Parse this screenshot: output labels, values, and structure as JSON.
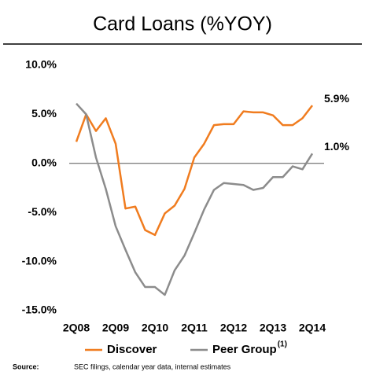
{
  "chart_data": {
    "type": "line",
    "title": "Card Loans (%YOY)",
    "categories": [
      "2Q08",
      null,
      null,
      null,
      "2Q09",
      null,
      null,
      null,
      "2Q10",
      null,
      null,
      null,
      "2Q11",
      null,
      null,
      null,
      "2Q12",
      null,
      null,
      null,
      "2Q13",
      null,
      null,
      null,
      "2Q14"
    ],
    "series": [
      {
        "name": "Discover",
        "color": "#f07c1f",
        "values": [
          2.2,
          5.0,
          3.3,
          4.6,
          2.0,
          -4.6,
          -4.4,
          -6.8,
          -7.3,
          -5.1,
          -4.3,
          -2.6,
          0.6,
          2.0,
          3.9,
          4.0,
          4.0,
          5.3,
          5.2,
          5.2,
          4.9,
          3.9,
          3.9,
          4.6,
          5.9
        ],
        "value_labels": [
          null,
          null,
          null,
          null,
          null,
          null,
          null,
          null,
          null,
          null,
          null,
          null,
          null,
          null,
          null,
          null,
          null,
          null,
          null,
          null,
          null,
          null,
          null,
          null,
          "5.9%"
        ]
      },
      {
        "name": "Peer Group",
        "color": "#8c8c8c",
        "values": [
          6.1,
          5.0,
          0.6,
          -2.6,
          -6.4,
          -8.8,
          -11.1,
          -12.6,
          -12.6,
          -13.4,
          -10.9,
          -9.4,
          -7.1,
          -4.7,
          -2.7,
          -2.0,
          -2.1,
          -2.2,
          -2.7,
          -2.5,
          -1.4,
          -1.4,
          -0.3,
          -0.6,
          1.0
        ],
        "value_labels": [
          null,
          null,
          null,
          null,
          null,
          null,
          null,
          null,
          null,
          null,
          null,
          null,
          null,
          null,
          null,
          null,
          null,
          null,
          null,
          null,
          null,
          null,
          null,
          null,
          "1.0%"
        ]
      }
    ],
    "legend_superscript": "(1)",
    "ylim": [
      -15,
      10
    ],
    "yticks": [
      {
        "value": 10,
        "label": "10.0%"
      },
      {
        "value": 5,
        "label": "5.0%"
      },
      {
        "value": 0,
        "label": "0.0%"
      },
      {
        "value": -5,
        "label": "-5.0%"
      },
      {
        "value": -10,
        "label": "-10.0%"
      },
      {
        "value": -15,
        "label": "-15.0%"
      }
    ],
    "grid": false,
    "source_label": "Source:",
    "source_text": "SEC filings, calendar year data, internal estimates"
  }
}
